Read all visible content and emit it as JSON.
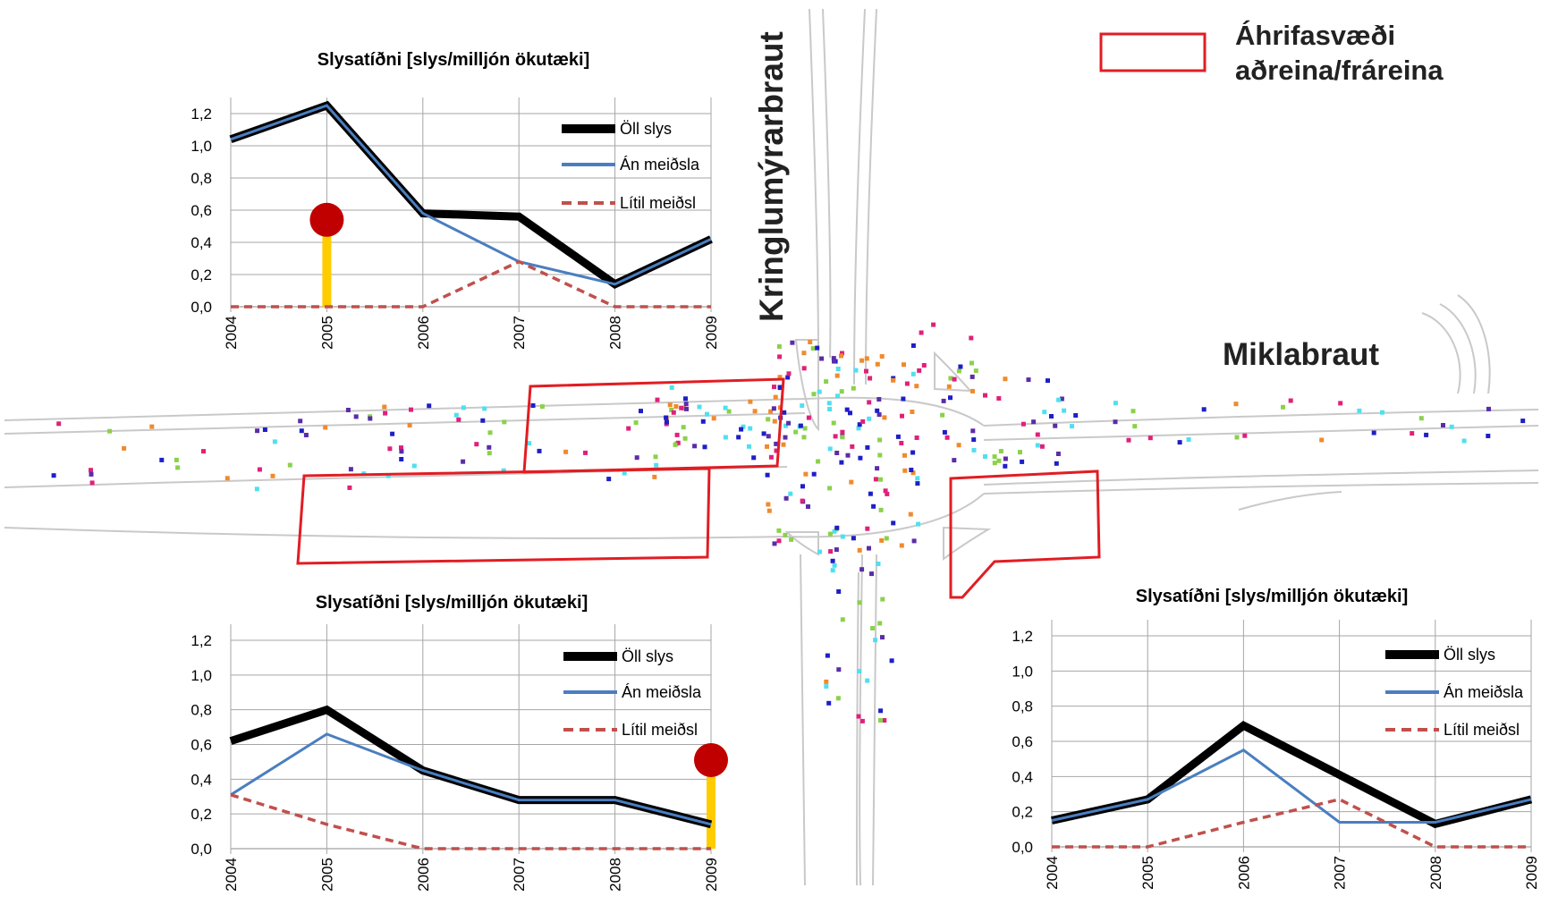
{
  "map": {
    "street_vertical": "Kringlumýrarbraut",
    "street_horizontal": "Miklabraut",
    "legend": {
      "line1": "Áhrifasvæði",
      "line2": "aðreina/fráreina",
      "color": "#e11d23"
    },
    "dot_colors": [
      "#1e1ec8",
      "#e0207a",
      "#f08a2c",
      "#8bd14a",
      "#4fe0f0",
      "#5b2ca8"
    ]
  },
  "charts": [
    {
      "id": "top-left",
      "chart_data": {
        "type": "line",
        "title": "Slysatíðni [slys/milljón ökutæki]",
        "x": [
          "2004",
          "2005",
          "2006",
          "2007",
          "2008",
          "2009"
        ],
        "ylim": [
          0,
          1.2
        ],
        "yticks": [
          "0,0",
          "0,2",
          "0,4",
          "0,6",
          "0,8",
          "1,0",
          "1,2"
        ],
        "grid": true,
        "legend_position": "top-right",
        "series": [
          {
            "name": "Öll slys",
            "values": [
              1.04,
              1.25,
              0.58,
              0.56,
              0.14,
              0.42
            ],
            "color": "#000000",
            "style": "thick"
          },
          {
            "name": "Án meiðsla",
            "values": [
              1.04,
              1.25,
              0.58,
              0.28,
              0.14,
              0.42
            ],
            "color": "#4a7ec0",
            "style": "solid"
          },
          {
            "name": "Lítil meiðsl",
            "values": [
              0.0,
              0.0,
              0.0,
              0.28,
              0.0,
              0.0
            ],
            "color": "#c0504d",
            "style": "dashed"
          }
        ],
        "marker": {
          "x": "2005",
          "value": 0.54
        }
      }
    },
    {
      "id": "bottom-left",
      "chart_data": {
        "type": "line",
        "title": "Slysatíðni [slys/milljón ökutæki]",
        "x": [
          "2004",
          "2005",
          "2006",
          "2007",
          "2008",
          "2009"
        ],
        "ylim": [
          0,
          1.2
        ],
        "yticks": [
          "0,0",
          "0,2",
          "0,4",
          "0,6",
          "0,8",
          "1,0",
          "1,2"
        ],
        "grid": true,
        "legend_position": "top-right",
        "series": [
          {
            "name": "Öll slys",
            "values": [
              0.62,
              0.8,
              0.45,
              0.28,
              0.28,
              0.14
            ],
            "color": "#000000",
            "style": "thick"
          },
          {
            "name": "Án meiðsla",
            "values": [
              0.31,
              0.66,
              0.45,
              0.28,
              0.28,
              0.14
            ],
            "color": "#4a7ec0",
            "style": "solid"
          },
          {
            "name": "Lítil meiðsl",
            "values": [
              0.31,
              0.14,
              0.0,
              0.0,
              0.0,
              0.0
            ],
            "color": "#c0504d",
            "style": "dashed"
          }
        ],
        "marker": {
          "x": "2009",
          "value": 0.51
        }
      }
    },
    {
      "id": "bottom-right",
      "chart_data": {
        "type": "line",
        "title": "Slysatíðni [slys/milljón ökutæki]",
        "x": [
          "2004",
          "2005",
          "2006",
          "2007",
          "2008",
          "2009"
        ],
        "ylim": [
          0,
          1.2
        ],
        "yticks": [
          "0,0",
          "0,2",
          "0,4",
          "0,6",
          "0,8",
          "1,0",
          "1,2"
        ],
        "grid": true,
        "legend_position": "top-right",
        "series": [
          {
            "name": "Öll slys",
            "values": [
              0.15,
              0.27,
              0.69,
              0.41,
              0.13,
              0.27
            ],
            "color": "#000000",
            "style": "thick"
          },
          {
            "name": "Án meiðsla",
            "values": [
              0.15,
              0.27,
              0.55,
              0.14,
              0.14,
              0.27
            ],
            "color": "#4a7ec0",
            "style": "solid"
          },
          {
            "name": "Lítil meiðsl",
            "values": [
              0.0,
              0.0,
              0.14,
              0.27,
              0.0,
              0.0
            ],
            "color": "#c0504d",
            "style": "dashed"
          }
        ],
        "marker": null
      }
    }
  ]
}
